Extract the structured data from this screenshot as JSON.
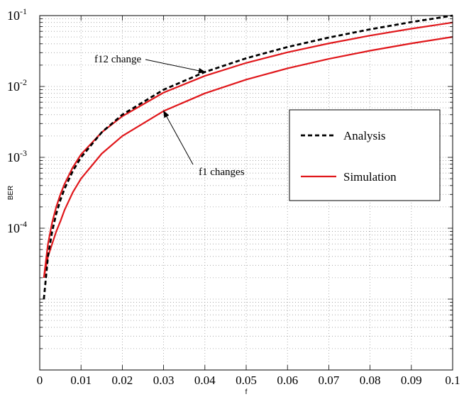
{
  "chart_data": {
    "type": "line",
    "title": "",
    "xlabel": "f",
    "ylabel": "BER",
    "xlim": [
      0,
      0.1
    ],
    "ylim": [
      1e-06,
      0.1
    ],
    "yscale": "log",
    "grid": true,
    "legend_position": "right",
    "x_ticks": [
      0,
      0.01,
      0.02,
      0.03,
      0.04,
      0.05,
      0.06,
      0.07,
      0.08,
      0.09,
      0.1
    ],
    "x_tick_labels": [
      "0",
      "0.01",
      "0.02",
      "0.03",
      "0.04",
      "0.05",
      "0.06",
      "0.07",
      "0.08",
      "0.09",
      "0.1"
    ],
    "y_ticks": [
      0.0001,
      0.001,
      0.01,
      0.1
    ],
    "y_tick_labels": [
      {
        "base": "10",
        "exp": "-4"
      },
      {
        "base": "10",
        "exp": "-3"
      },
      {
        "base": "10",
        "exp": "-2"
      },
      {
        "base": "10",
        "exp": "-1"
      }
    ],
    "series": [
      {
        "name": "Analysis",
        "color": "#000000",
        "style": "dashed",
        "x": [
          0.001,
          0.002,
          0.003,
          0.004,
          0.005,
          0.006,
          0.008,
          0.01,
          0.015,
          0.02,
          0.03,
          0.04,
          0.05,
          0.06,
          0.07,
          0.08,
          0.09,
          0.1
        ],
        "y": [
          1e-05,
          4e-05,
          9e-05,
          0.00016,
          0.00025,
          0.00036,
          0.00064,
          0.001,
          0.00225,
          0.004,
          0.009,
          0.016,
          0.025,
          0.036,
          0.049,
          0.064,
          0.081,
          0.1
        ]
      },
      {
        "name": "Simulation",
        "color": "#e0171b",
        "style": "solid",
        "x": [
          0.001,
          0.002,
          0.003,
          0.004,
          0.005,
          0.006,
          0.008,
          0.01,
          0.015,
          0.02,
          0.03,
          0.04,
          0.05,
          0.06,
          0.07,
          0.08,
          0.09,
          0.1
        ],
        "y": [
          2e-05,
          6e-05,
          0.00012,
          0.0002,
          0.0003,
          0.00042,
          0.00072,
          0.0011,
          0.00225,
          0.0038,
          0.0082,
          0.0141,
          0.0215,
          0.0303,
          0.0405,
          0.0522,
          0.0653,
          0.0799
        ]
      },
      {
        "name": "Simulation",
        "color": "#e0171b",
        "style": "solid",
        "x": [
          0.001,
          0.002,
          0.003,
          0.004,
          0.005,
          0.006,
          0.008,
          0.01,
          0.015,
          0.02,
          0.03,
          0.04,
          0.05,
          0.06,
          0.07,
          0.08,
          0.09,
          0.1
        ],
        "y": [
          2e-05,
          4e-05,
          6e-05,
          9e-05,
          0.000125,
          0.00018,
          0.00032,
          0.0005,
          0.001125,
          0.002,
          0.0045,
          0.008,
          0.0125,
          0.018,
          0.0245,
          0.032,
          0.0405,
          0.05
        ]
      }
    ],
    "legend": [
      {
        "label": "Analysis",
        "color": "#000000",
        "style": "dashed"
      },
      {
        "label": "Simulation",
        "color": "#e0171b",
        "style": "solid"
      }
    ],
    "annotations": [
      {
        "text": "f12 change",
        "points_to": {
          "x": 0.04,
          "y": 0.016
        }
      },
      {
        "text": "f1 changes",
        "points_to": {
          "x": 0.03,
          "y": 0.0045
        }
      }
    ]
  }
}
